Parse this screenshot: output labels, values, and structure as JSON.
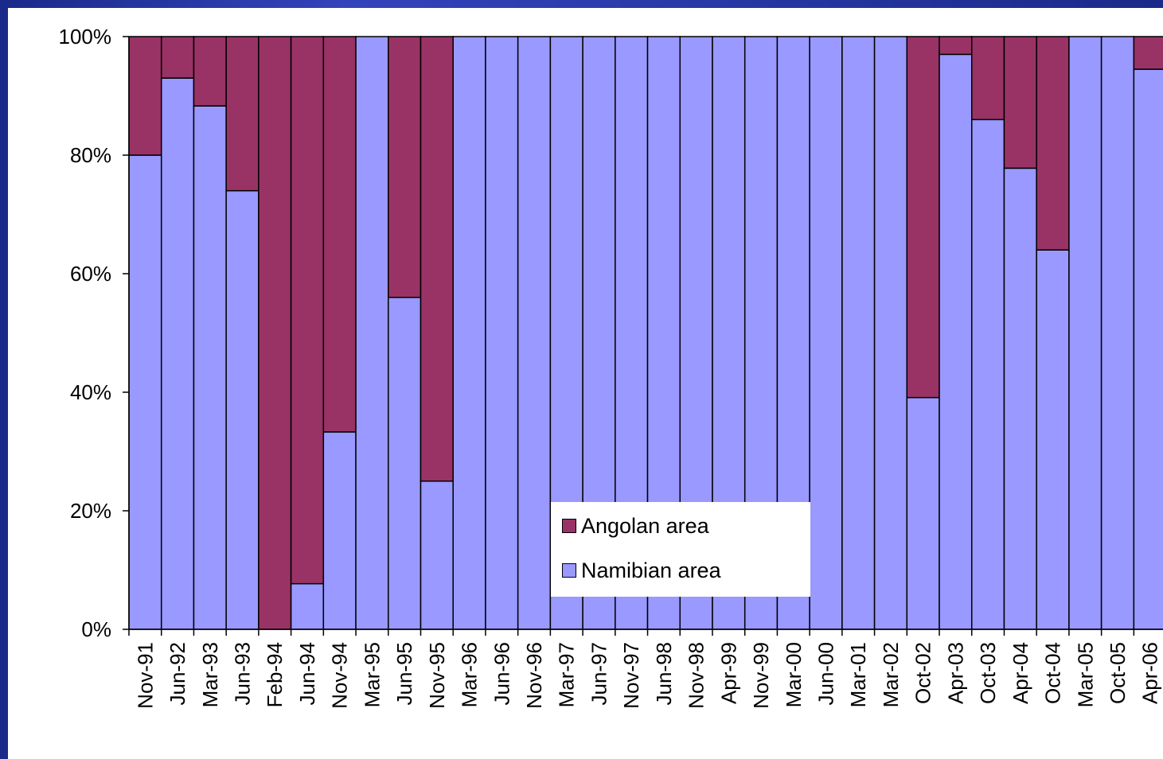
{
  "chart_data": {
    "type": "bar",
    "stacked": true,
    "normalized": true,
    "categories": [
      "Nov-91",
      "Jun-92",
      "Mar-93",
      "Jun-93",
      "Feb-94",
      "Jun-94",
      "Nov-94",
      "Mar-95",
      "Jun-95",
      "Nov-95",
      "Mar-96",
      "Jun-96",
      "Nov-96",
      "Mar-97",
      "Jun-97",
      "Nov-97",
      "Jun-98",
      "Nov-98",
      "Apr-99",
      "Nov-99",
      "Mar-00",
      "Jun-00",
      "Mar-01",
      "Mar-02",
      "Oct-02",
      "Apr-03",
      "Oct-03",
      "Apr-04",
      "Oct-04",
      "Mar-05",
      "Oct-05",
      "Apr-06"
    ],
    "series": [
      {
        "name": "Namibian area",
        "color": "#9999ff",
        "values": [
          80,
          93,
          88.3,
          74,
          0,
          7.7,
          33.3,
          100,
          56,
          25,
          100,
          100,
          100,
          100,
          100,
          100,
          100,
          100,
          100,
          100,
          100,
          100,
          100,
          100,
          39.1,
          97,
          86,
          77.8,
          64,
          100,
          100,
          94.5
        ]
      },
      {
        "name": "Angolan area",
        "color": "#993366",
        "values": [
          20,
          7,
          11.7,
          26,
          100,
          92.3,
          66.7,
          0,
          44,
          75,
          0,
          0,
          0,
          0,
          0,
          0,
          0,
          0,
          0,
          0,
          0,
          0,
          0,
          0,
          60.9,
          3,
          14,
          22.2,
          36,
          0,
          0,
          5.5
        ]
      }
    ],
    "y_ticks": [
      "0%",
      "20%",
      "40%",
      "60%",
      "80%",
      "100%"
    ],
    "ylim": [
      0,
      100
    ],
    "title": "",
    "xlabel": "",
    "ylabel": "",
    "grid": false,
    "legend_position": "bottom-center"
  },
  "legend": {
    "items": [
      {
        "label": "Angolan area",
        "color": "#993366"
      },
      {
        "label": "Namibian area",
        "color": "#9999ff"
      }
    ]
  }
}
